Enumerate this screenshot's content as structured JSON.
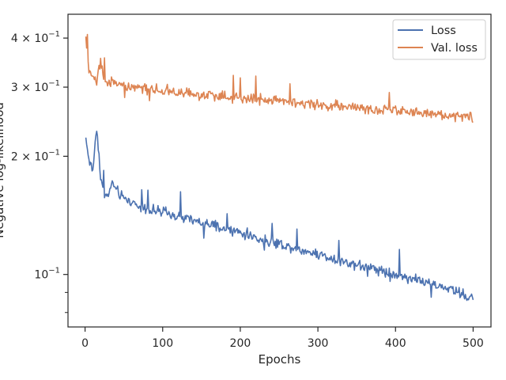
{
  "chart_data": {
    "type": "line",
    "title": "",
    "xlabel": "Epochs",
    "ylabel": "Negative log-likelihood",
    "yscale": "log",
    "xlim": [
      -22,
      523
    ],
    "ylim": [
      0.0735,
      0.46
    ],
    "x_ticks": [
      0,
      100,
      200,
      300,
      400,
      500
    ],
    "y_ticks": [
      {
        "value": 0.1,
        "base": "10",
        "exp": "−1",
        "mantissa": ""
      },
      {
        "value": 0.2,
        "base": "10",
        "exp": "−1",
        "mantissa": "2 × "
      },
      {
        "value": 0.3,
        "base": "10",
        "exp": "−1",
        "mantissa": "3 × "
      },
      {
        "value": 0.4,
        "base": "10",
        "exp": "−1",
        "mantissa": "4 × "
      }
    ],
    "y_minor_ticks": [
      0.08,
      0.09
    ],
    "grid": false,
    "legend_position": "top-right",
    "x_range": [
      1,
      500
    ],
    "series": [
      {
        "name": "Loss",
        "color": "#4c72b0",
        "x": [
          1,
          5,
          10,
          15,
          20,
          25,
          30,
          35,
          40,
          45,
          50,
          60,
          70,
          80,
          90,
          100,
          110,
          120,
          130,
          140,
          150,
          160,
          170,
          180,
          190,
          200,
          210,
          220,
          230,
          240,
          250,
          260,
          270,
          280,
          290,
          300,
          310,
          320,
          330,
          340,
          350,
          360,
          370,
          380,
          390,
          400,
          410,
          420,
          430,
          440,
          450,
          460,
          470,
          480,
          490,
          500
        ],
        "values": [
          0.222,
          0.196,
          0.183,
          0.238,
          0.175,
          0.16,
          0.158,
          0.172,
          0.164,
          0.16,
          0.156,
          0.153,
          0.149,
          0.147,
          0.145,
          0.144,
          0.142,
          0.14,
          0.139,
          0.137,
          0.135,
          0.134,
          0.132,
          0.13,
          0.129,
          0.128,
          0.126,
          0.124,
          0.122,
          0.121,
          0.12,
          0.118,
          0.117,
          0.115,
          0.114,
          0.113,
          0.111,
          0.11,
          0.108,
          0.107,
          0.106,
          0.105,
          0.104,
          0.103,
          0.101,
          0.1,
          0.099,
          0.098,
          0.097,
          0.095,
          0.094,
          0.093,
          0.092,
          0.09,
          0.088,
          0.087
        ]
      },
      {
        "name": "Val. loss",
        "color": "#dd8452",
        "x": [
          1,
          5,
          10,
          15,
          20,
          25,
          30,
          35,
          40,
          45,
          50,
          60,
          70,
          80,
          90,
          100,
          110,
          120,
          130,
          140,
          150,
          160,
          170,
          180,
          190,
          200,
          210,
          220,
          230,
          240,
          250,
          260,
          270,
          280,
          290,
          300,
          310,
          320,
          330,
          340,
          350,
          360,
          370,
          380,
          390,
          400,
          410,
          420,
          430,
          440,
          450,
          460,
          470,
          480,
          490,
          500
        ],
        "values": [
          0.392,
          0.325,
          0.318,
          0.31,
          0.355,
          0.312,
          0.308,
          0.31,
          0.306,
          0.305,
          0.303,
          0.302,
          0.3,
          0.298,
          0.296,
          0.295,
          0.293,
          0.291,
          0.29,
          0.288,
          0.287,
          0.286,
          0.285,
          0.284,
          0.283,
          0.282,
          0.281,
          0.279,
          0.278,
          0.277,
          0.276,
          0.275,
          0.274,
          0.273,
          0.272,
          0.271,
          0.27,
          0.269,
          0.268,
          0.267,
          0.266,
          0.265,
          0.264,
          0.263,
          0.262,
          0.261,
          0.26,
          0.259,
          0.258,
          0.257,
          0.256,
          0.255,
          0.254,
          0.253,
          0.252,
          0.251
        ]
      }
    ]
  }
}
